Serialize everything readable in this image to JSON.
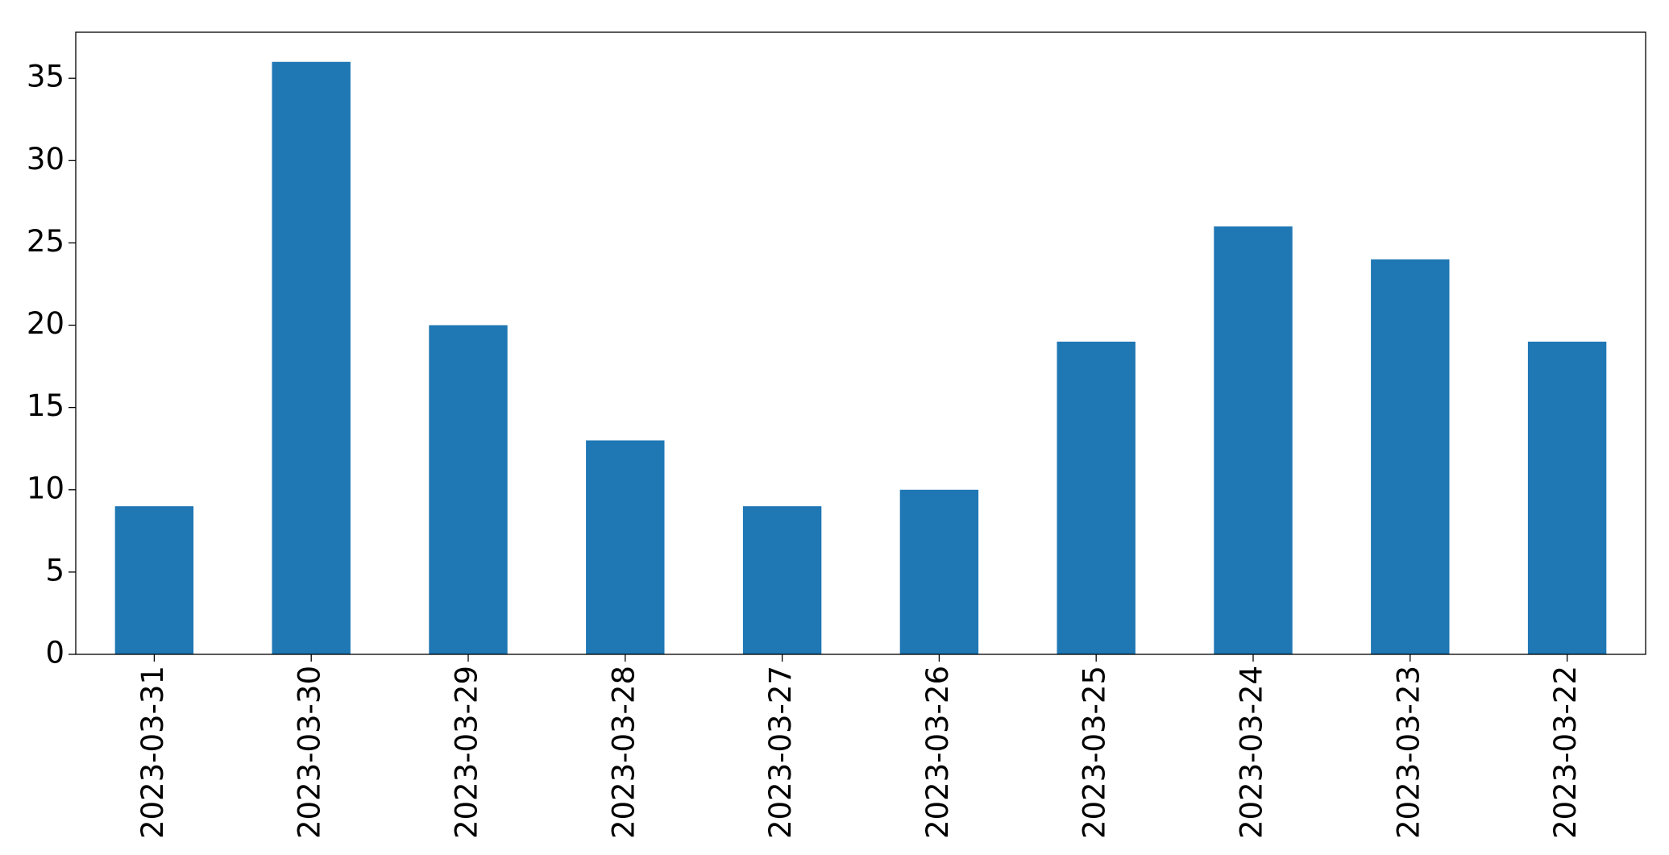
{
  "chart_data": {
    "type": "bar",
    "categories": [
      "2023-03-31",
      "2023-03-30",
      "2023-03-29",
      "2023-03-28",
      "2023-03-27",
      "2023-03-26",
      "2023-03-25",
      "2023-03-24",
      "2023-03-23",
      "2023-03-22"
    ],
    "values": [
      9,
      36,
      20,
      13,
      9,
      10,
      19,
      26,
      24,
      19
    ],
    "color": "#1f77b4",
    "ylim": [
      0,
      37.8
    ],
    "yticks": [
      0,
      5,
      10,
      15,
      20,
      25,
      30,
      35
    ],
    "grid": false
  }
}
